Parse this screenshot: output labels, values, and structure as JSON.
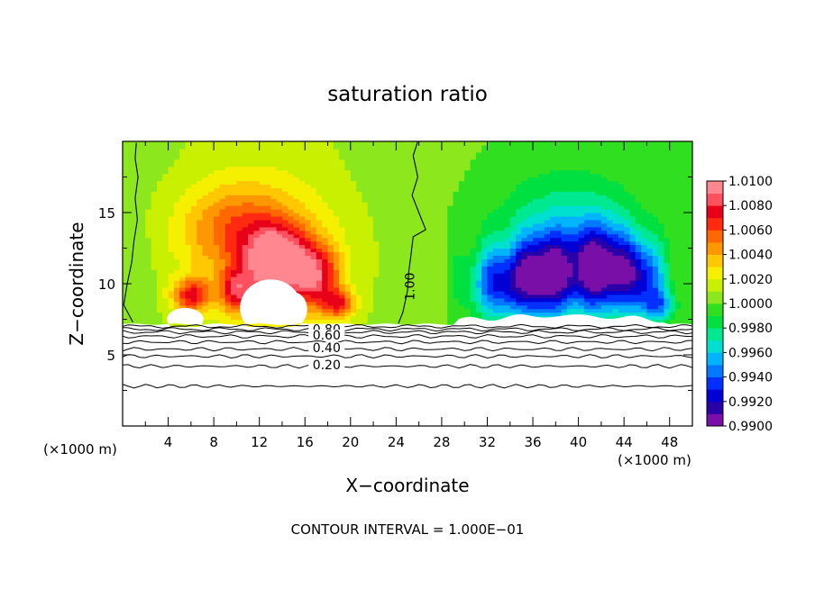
{
  "chart_data": {
    "type": "heatmap",
    "title": "saturation ratio",
    "xlabel": "X−coordinate",
    "ylabel": "Z−coordinate",
    "x_unit_label": "(×1000 m)",
    "footer": "CONTOUR INTERVAL = 1.000E−01",
    "xlim": [
      0,
      50
    ],
    "ylim": [
      0,
      20
    ],
    "x_ticks": [
      4,
      8,
      12,
      16,
      20,
      24,
      28,
      32,
      36,
      40,
      44,
      48
    ],
    "y_ticks": [
      5,
      10,
      15
    ],
    "colorbar": {
      "min": 0.99,
      "max": 1.01,
      "labels": [
        "1.0100",
        "1.0080",
        "1.0060",
        "1.0040",
        "1.0020",
        "1.0000",
        "0.9980",
        "0.9960",
        "0.9940",
        "0.9920",
        "0.9900"
      ],
      "colors": [
        "#7a0fa8",
        "#2a00a8",
        "#0000d6",
        "#0030ff",
        "#0078ff",
        "#00b4ff",
        "#00e0d0",
        "#00e890",
        "#00e040",
        "#30e020",
        "#8ce81c",
        "#c8f000",
        "#f4f000",
        "#ffc800",
        "#ff9800",
        "#ff6800",
        "#ff2a10",
        "#e80018",
        "#ff5060",
        "#ff8890"
      ]
    },
    "contour_labels": [
      {
        "text": "1.00",
        "x": 25.2,
        "z": 9.8
      },
      {
        "text": "0.80",
        "x": 17.9,
        "z": 6.8
      },
      {
        "text": "0.60",
        "x": 17.9,
        "z": 6.4
      },
      {
        "text": "0.40",
        "x": 17.9,
        "z": 5.5
      },
      {
        "text": "0.20",
        "x": 17.9,
        "z": 4.3
      }
    ],
    "contour_lines_below_cloud": [
      {
        "level": 0.9,
        "z": 7.0
      },
      {
        "level": 0.8,
        "z": 6.8
      },
      {
        "level": 0.7,
        "z": 6.6
      },
      {
        "level": 0.6,
        "z": 6.3
      },
      {
        "level": 0.5,
        "z": 5.9
      },
      {
        "level": 0.4,
        "z": 5.4
      },
      {
        "level": 0.3,
        "z": 4.9
      },
      {
        "level": 0.2,
        "z": 4.2
      },
      {
        "level": 0.1,
        "z": 2.8
      }
    ],
    "field_sources": [
      {
        "x": 6,
        "z": 9.2,
        "amp": 0.006,
        "sx": 1.6,
        "sz": 1.2
      },
      {
        "x": 13.5,
        "z": 11.5,
        "amp": 0.0085,
        "sx": 2.6,
        "sz": 2.3
      },
      {
        "x": 10,
        "z": 9.5,
        "amp": 0.005,
        "sx": 1.6,
        "sz": 1.5
      },
      {
        "x": 17,
        "z": 10.5,
        "amp": 0.006,
        "sx": 2.0,
        "sz": 2.2
      },
      {
        "x": 19,
        "z": 8.6,
        "amp": 0.005,
        "sx": 1.4,
        "sz": 1.0
      },
      {
        "x": 10,
        "z": 14,
        "amp": 0.0035,
        "sx": 5.0,
        "sz": 3.0
      },
      {
        "x": 13,
        "z": 12,
        "amp": 0.0022,
        "sx": 7.0,
        "sz": 5.0
      },
      {
        "x": 33,
        "z": 10,
        "amp": -0.006,
        "sx": 2.6,
        "sz": 2.5
      },
      {
        "x": 37,
        "z": 10.5,
        "amp": -0.0085,
        "sx": 2.6,
        "sz": 2.8
      },
      {
        "x": 42,
        "z": 11,
        "amp": -0.0085,
        "sx": 2.6,
        "sz": 3.0
      },
      {
        "x": 45.5,
        "z": 10.5,
        "amp": -0.006,
        "sx": 2.0,
        "sz": 2.5
      },
      {
        "x": 39,
        "z": 13,
        "amp": -0.0035,
        "sx": 6.0,
        "sz": 4.5
      },
      {
        "x": 47,
        "z": 8.5,
        "amp": -0.004,
        "sx": 1.5,
        "sz": 1.2
      }
    ],
    "cloud_free_regions": [
      {
        "x": 5.5,
        "z": 7.5,
        "rx": 1.6,
        "rz": 0.8
      },
      {
        "x": 13,
        "z": 8.3,
        "rx": 2.7,
        "rz": 2.0
      },
      {
        "x": 15,
        "z": 8.2,
        "rx": 1.2,
        "rz": 1.2
      }
    ]
  }
}
